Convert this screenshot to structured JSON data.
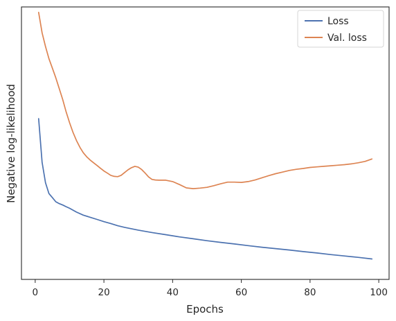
{
  "chart_data": {
    "type": "line",
    "xlabel": "Epochs",
    "ylabel": "Negative log-likelihood",
    "xlim": [
      -4,
      103
    ],
    "ylim": [
      0,
      100
    ],
    "xticks": [
      0,
      20,
      40,
      60,
      80,
      100
    ],
    "yticks_shown": false,
    "grid": false,
    "legend_position": "top-right",
    "series": [
      {
        "name": "Loss",
        "color": "#4c72b0",
        "x": [
          1,
          2,
          3,
          4,
          5,
          6,
          7,
          8,
          9,
          10,
          12,
          14,
          16,
          18,
          20,
          22,
          24,
          26,
          28,
          30,
          34,
          38,
          42,
          46,
          50,
          54,
          58,
          62,
          66,
          70,
          74,
          78,
          82,
          86,
          90,
          94,
          98
        ],
        "y": [
          59.0,
          43.0,
          35.5,
          31.5,
          30.0,
          28.5,
          27.8,
          27.3,
          26.7,
          26.1,
          24.7,
          23.6,
          22.8,
          22.0,
          21.2,
          20.5,
          19.7,
          19.1,
          18.6,
          18.1,
          17.2,
          16.4,
          15.6,
          14.9,
          14.2,
          13.6,
          13.0,
          12.4,
          11.8,
          11.3,
          10.8,
          10.2,
          9.7,
          9.1,
          8.6,
          8.1,
          7.5
        ]
      },
      {
        "name": "Val. loss",
        "color": "#dd8452",
        "x": [
          1,
          2,
          3,
          4,
          5,
          6,
          7,
          8,
          9,
          10,
          11,
          12,
          13,
          14,
          15,
          16,
          17,
          18,
          19,
          20,
          21,
          22,
          23,
          24,
          25,
          26,
          27,
          28,
          29,
          30,
          31,
          32,
          33,
          34,
          35,
          36,
          38,
          40,
          42,
          44,
          46,
          48,
          50,
          52,
          54,
          56,
          58,
          60,
          62,
          64,
          66,
          68,
          70,
          72,
          74,
          76,
          78,
          80,
          82,
          84,
          86,
          88,
          90,
          92,
          94,
          96,
          98
        ],
        "y": [
          98.0,
          90.5,
          85.5,
          81.0,
          77.5,
          74.0,
          70.0,
          66.0,
          61.5,
          57.5,
          54.0,
          51.0,
          48.5,
          46.5,
          45.0,
          43.8,
          42.8,
          41.8,
          40.8,
          39.8,
          39.0,
          38.2,
          37.8,
          37.7,
          38.2,
          39.2,
          40.2,
          41.0,
          41.5,
          41.2,
          40.3,
          39.0,
          37.6,
          36.7,
          36.5,
          36.4,
          36.4,
          35.9,
          34.8,
          33.6,
          33.3,
          33.5,
          33.8,
          34.4,
          35.1,
          35.7,
          35.7,
          35.6,
          35.9,
          36.5,
          37.3,
          38.1,
          38.8,
          39.4,
          40.0,
          40.4,
          40.7,
          41.1,
          41.3,
          41.5,
          41.7,
          41.9,
          42.1,
          42.4,
          42.8,
          43.3,
          44.2
        ]
      }
    ]
  }
}
